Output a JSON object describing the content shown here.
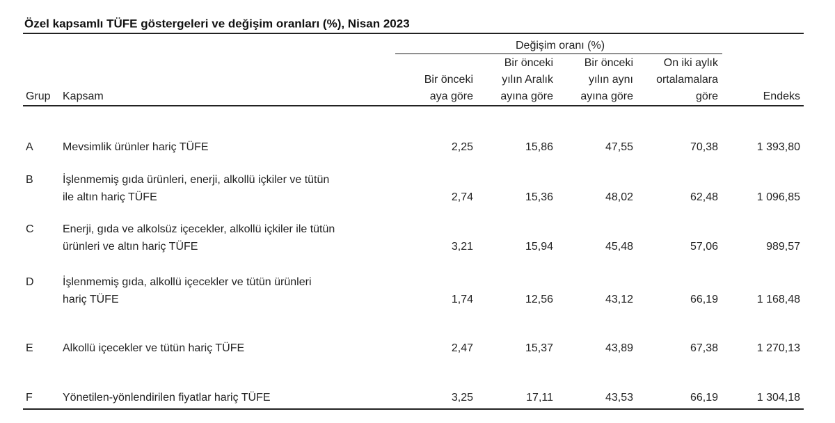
{
  "title": "Özel kapsamlı TÜFE göstergeleri ve değişim oranları (%), Nisan 2023",
  "table": {
    "group_header": "Değişim oranı (%)",
    "columns": [
      [
        "Grup"
      ],
      [
        "Kapsam"
      ],
      [
        "Bir önceki",
        "aya göre"
      ],
      [
        "Bir önceki",
        "yılın Aralık",
        "ayına göre"
      ],
      [
        "Bir önceki",
        "yılın aynı",
        "ayına göre"
      ],
      [
        "On iki aylık",
        "ortalamalara",
        "göre"
      ],
      [
        "Endeks"
      ]
    ],
    "rows": [
      {
        "group": "A",
        "scope": [
          "Mevsimlik ürünler hariç TÜFE"
        ],
        "values": [
          "2,25",
          "15,86",
          "47,55",
          "70,38",
          "1 393,80"
        ]
      },
      {
        "group": "B",
        "scope": [
          "İşlenmemiş gıda ürünleri, enerji, alkollü içkiler ve tütün",
          "ile altın hariç TÜFE"
        ],
        "values": [
          "2,74",
          "15,36",
          "48,02",
          "62,48",
          "1 096,85"
        ]
      },
      {
        "group": "C",
        "scope": [
          "Enerji, gıda ve alkolsüz içecekler, alkollü içkiler ile tütün",
          "ürünleri ve altın hariç TÜFE"
        ],
        "values": [
          "3,21",
          "15,94",
          "45,48",
          "57,06",
          "989,57"
        ]
      },
      {
        "group": "D",
        "scope": [
          "İşlenmemiş gıda, alkollü içecekler ve tütün ürünleri",
          "hariç TÜFE"
        ],
        "values": [
          "1,74",
          "12,56",
          "43,12",
          "66,19",
          "1 168,48"
        ]
      },
      {
        "group": "E",
        "scope": [
          "Alkollü içecekler ve tütün hariç TÜFE"
        ],
        "values": [
          "2,47",
          "15,37",
          "43,89",
          "67,38",
          "1 270,13"
        ]
      },
      {
        "group": "F",
        "scope": [
          "Yönetilen-yönlendirilen fiyatlar hariç TÜFE"
        ],
        "values": [
          "3,25",
          "17,11",
          "43,53",
          "66,19",
          "1 304,18"
        ]
      }
    ]
  }
}
